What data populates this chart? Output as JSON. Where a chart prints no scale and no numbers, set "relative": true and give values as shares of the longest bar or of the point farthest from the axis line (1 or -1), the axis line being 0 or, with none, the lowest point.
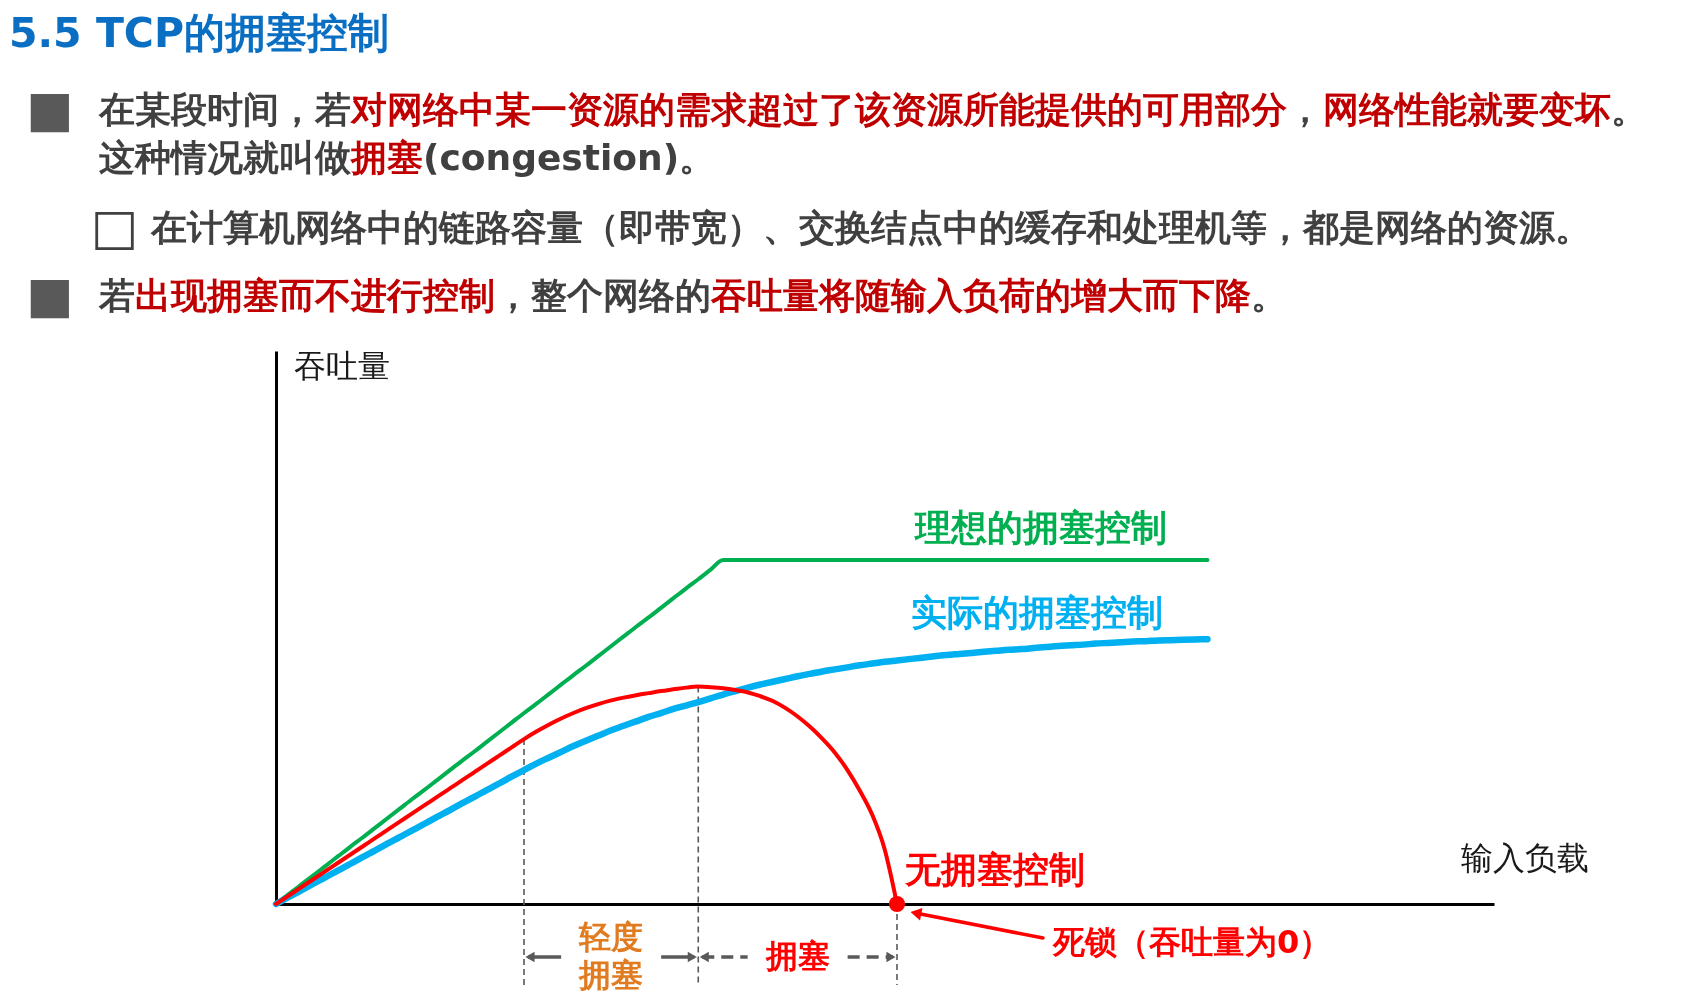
{
  "chart_data": {
    "type": "line",
    "title": "5.5 TCP的拥塞控制",
    "relative": true,
    "categories": [
      null,
      null,
      null,
      null,
      null,
      null,
      null,
      null,
      null,
      null,
      null,
      null,
      null,
      null,
      null,
      null,
      null,
      null,
      null,
      null,
      null,
      null,
      null,
      null,
      null,
      null,
      null,
      null,
      null,
      null,
      null,
      null,
      null,
      null,
      null,
      null,
      null,
      null,
      null,
      null,
      null,
      null,
      null,
      null,
      null,
      null,
      null,
      null,
      null,
      null,
      null,
      null,
      null,
      null,
      null,
      null,
      null,
      null,
      null,
      null,
      null,
      null,
      null,
      null,
      null,
      null,
      null,
      null,
      null,
      null,
      null,
      null,
      null,
      null,
      null,
      null
    ],
    "series": [
      {
        "name": "理想的拥塞控制",
        "color": "#00b050",
        "values": [
          0,
          0.028,
          0.056,
          0.083,
          0.111,
          0.139,
          0.167,
          0.194,
          0.222,
          0.25,
          0.278,
          0.306,
          0.333,
          0.361,
          0.389,
          0.417,
          0.444,
          0.472,
          0.5,
          0.528,
          0.556,
          0.583,
          0.611,
          0.639,
          0.667,
          0.694,
          0.722,
          0.75,
          0.778,
          0.806,
          0.833,
          0.861,
          0.889,
          0.917,
          0.944,
          0.972,
          1,
          1,
          1,
          1,
          1,
          1,
          1,
          1,
          1,
          1,
          1,
          1,
          1,
          1,
          1,
          1,
          1,
          1,
          1,
          1,
          1,
          1,
          1,
          1,
          1,
          1,
          1,
          1,
          1,
          1,
          1,
          1,
          1,
          1,
          1,
          1,
          1,
          1,
          1,
          1
        ]
      },
      {
        "name": "实际的拥塞控制",
        "color": "#00b0f0",
        "values": [
          0,
          0.02,
          0.039,
          0.059,
          0.078,
          0.098,
          0.117,
          0.137,
          0.156,
          0.176,
          0.195,
          0.215,
          0.234,
          0.254,
          0.273,
          0.293,
          0.312,
          0.332,
          0.351,
          0.371,
          0.39,
          0.409,
          0.426,
          0.443,
          0.46,
          0.475,
          0.49,
          0.505,
          0.518,
          0.531,
          0.544,
          0.555,
          0.567,
          0.577,
          0.587,
          0.598,
          0.609,
          0.619,
          0.629,
          0.638,
          0.646,
          0.654,
          0.662,
          0.669,
          0.676,
          0.682,
          0.688,
          0.694,
          0.699,
          0.704,
          0.708,
          0.712,
          0.716,
          0.72,
          0.724,
          0.727,
          0.73,
          0.733,
          0.736,
          0.739,
          0.741,
          0.744,
          0.747,
          0.75,
          0.752,
          0.754,
          0.757,
          0.759,
          0.761,
          0.763,
          0.764,
          0.766,
          0.767,
          0.768,
          0.769,
          0.77
        ]
      },
      {
        "name": "无拥塞控制",
        "color": "#ff0000",
        "values": [
          0,
          0.024,
          0.048,
          0.072,
          0.096,
          0.12,
          0.144,
          0.168,
          0.192,
          0.216,
          0.24,
          0.264,
          0.288,
          0.312,
          0.336,
          0.36,
          0.384,
          0.408,
          0.432,
          0.456,
          0.48,
          0.502,
          0.522,
          0.54,
          0.556,
          0.57,
          0.582,
          0.592,
          0.6,
          0.607,
          0.613,
          0.619,
          0.624,
          0.629,
          0.632,
          0.63,
          0.627,
          0.622,
          0.615,
          0.604,
          0.59,
          0.57,
          0.545,
          0.515,
          0.48,
          0.44,
          0.39,
          0.33,
          0.26,
          0.16,
          0,
          null,
          null,
          null,
          null,
          null,
          null,
          null,
          null,
          null,
          null,
          null,
          null,
          null,
          null,
          null,
          null,
          null,
          null,
          null,
          null,
          null,
          null,
          null,
          null,
          null
        ]
      }
    ],
    "annotations": [
      "■",
      "在某段时间，若",
      "对网络中某一资源的需求超过了该资源所能提供的可用部分",
      "，",
      "网络性能就要变坏",
      "。",
      "这种情况就叫做",
      "拥塞",
      "(congestion)。",
      "□",
      "在计算机网络中的链路容量（即带宽）、交换结点中的缓存和处理机等，都是网络的资源。",
      "■",
      "若",
      "出现拥塞而不进行控制",
      "，整个网络的",
      "吞吐量将随输入负荷的增大而下降",
      "。",
      "吞吐量",
      "输入负载",
      "轻度拥塞",
      "拥塞",
      "死锁（吞吐量为0）"
    ]
  }
}
